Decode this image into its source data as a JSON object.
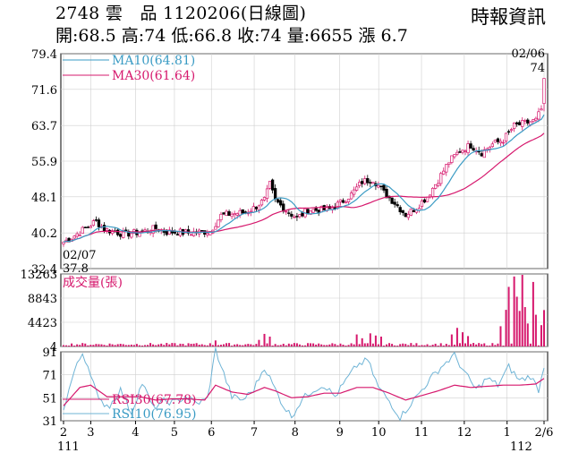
{
  "header": {
    "title": "2748 雲　品 1120206(日線圖)",
    "quote": "開:68.5 高:74 低:66.8 收:74 量:6655 漲 6.7",
    "brand": "時報資訊"
  },
  "colors": {
    "up": "#d6186d",
    "down": "#000000",
    "ma10": "#3a9bc4",
    "ma30": "#d6186d",
    "volume": "#d6186d",
    "rsi10": "#6fb4d6",
    "rsi30": "#d6186d",
    "grid": "#cfcfcf"
  },
  "chart_data": [
    {
      "type": "candlestick",
      "panel": "price",
      "ylim": [
        32.4,
        79.4
      ],
      "yticks": [
        "79.4",
        "71.6",
        "63.7",
        "55.9",
        "48.1",
        "40.2",
        "32.4"
      ],
      "legend": [
        {
          "name": "MA10",
          "value": "(64.81)",
          "color": "ma10"
        },
        {
          "name": "MA30",
          "value": "(61.64)",
          "color": "ma30"
        }
      ],
      "annotations": {
        "high_date": "02/06",
        "high_value": "74",
        "low_date": "02/07",
        "low_value": "37.8"
      },
      "close_keypoints": [
        {
          "i": 0,
          "v": 38.2
        },
        {
          "i": 3,
          "v": 39.2
        },
        {
          "i": 6,
          "v": 40.4
        },
        {
          "i": 9,
          "v": 41.6
        },
        {
          "i": 12,
          "v": 42.8
        },
        {
          "i": 15,
          "v": 41.0
        },
        {
          "i": 18,
          "v": 40.6
        },
        {
          "i": 22,
          "v": 40.0
        },
        {
          "i": 26,
          "v": 40.2
        },
        {
          "i": 30,
          "v": 40.6
        },
        {
          "i": 34,
          "v": 41.2
        },
        {
          "i": 38,
          "v": 40.4
        },
        {
          "i": 42,
          "v": 40.4
        },
        {
          "i": 46,
          "v": 40.2
        },
        {
          "i": 50,
          "v": 40.4
        },
        {
          "i": 54,
          "v": 40.6
        },
        {
          "i": 58,
          "v": 44.0
        },
        {
          "i": 62,
          "v": 44.4
        },
        {
          "i": 66,
          "v": 44.6
        },
        {
          "i": 70,
          "v": 45.6
        },
        {
          "i": 74,
          "v": 47.4
        },
        {
          "i": 76,
          "v": 50.8
        },
        {
          "i": 78,
          "v": 47.2
        },
        {
          "i": 82,
          "v": 45.2
        },
        {
          "i": 86,
          "v": 43.4
        },
        {
          "i": 90,
          "v": 45.2
        },
        {
          "i": 94,
          "v": 45.2
        },
        {
          "i": 98,
          "v": 45.4
        },
        {
          "i": 102,
          "v": 46.8
        },
        {
          "i": 106,
          "v": 48.6
        },
        {
          "i": 110,
          "v": 51.4
        },
        {
          "i": 114,
          "v": 52.0
        },
        {
          "i": 118,
          "v": 49.0
        },
        {
          "i": 122,
          "v": 46.8
        },
        {
          "i": 126,
          "v": 44.2
        },
        {
          "i": 130,
          "v": 45.8
        },
        {
          "i": 134,
          "v": 48.2
        },
        {
          "i": 138,
          "v": 51.8
        },
        {
          "i": 142,
          "v": 55.8
        },
        {
          "i": 146,
          "v": 58.2
        },
        {
          "i": 150,
          "v": 59.4
        },
        {
          "i": 154,
          "v": 57.8
        },
        {
          "i": 158,
          "v": 59.6
        },
        {
          "i": 162,
          "v": 60.6
        },
        {
          "i": 166,
          "v": 63.6
        },
        {
          "i": 170,
          "v": 64.2
        },
        {
          "i": 174,
          "v": 64.8
        },
        {
          "i": 176,
          "v": 67.3
        },
        {
          "i": 177,
          "v": 74.0
        }
      ],
      "last_bar": {
        "open": 68.5,
        "high": 74,
        "low": 66.8,
        "close": 74
      }
    },
    {
      "type": "bar",
      "panel": "volume",
      "title": "成交量(張)",
      "ylim": [
        0,
        13263
      ],
      "yticks": [
        "13263",
        "8843",
        "4423",
        "4"
      ],
      "high_volume_bars": [
        {
          "i": 56,
          "v": 1100
        },
        {
          "i": 72,
          "v": 1200
        },
        {
          "i": 74,
          "v": 2300
        },
        {
          "i": 76,
          "v": 1800
        },
        {
          "i": 108,
          "v": 2200
        },
        {
          "i": 110,
          "v": 1500
        },
        {
          "i": 113,
          "v": 2400
        },
        {
          "i": 115,
          "v": 2000
        },
        {
          "i": 117,
          "v": 1800
        },
        {
          "i": 143,
          "v": 2200
        },
        {
          "i": 145,
          "v": 3400
        },
        {
          "i": 147,
          "v": 2600
        },
        {
          "i": 149,
          "v": 1900
        },
        {
          "i": 161,
          "v": 3700
        },
        {
          "i": 163,
          "v": 6700
        },
        {
          "i": 164,
          "v": 10900
        },
        {
          "i": 166,
          "v": 12800
        },
        {
          "i": 167,
          "v": 9100
        },
        {
          "i": 168,
          "v": 6500
        },
        {
          "i": 169,
          "v": 13100
        },
        {
          "i": 170,
          "v": 7200
        },
        {
          "i": 171,
          "v": 4200
        },
        {
          "i": 173,
          "v": 11800
        },
        {
          "i": 174,
          "v": 5800
        },
        {
          "i": 176,
          "v": 3900
        },
        {
          "i": 177,
          "v": 6655
        }
      ]
    },
    {
      "type": "line",
      "panel": "rsi",
      "ylim": [
        31,
        91
      ],
      "yticks": [
        "91",
        "71",
        "51",
        "31"
      ],
      "legend": [
        {
          "name": "RSI30",
          "value": "(67.78)",
          "color": "rsi30"
        },
        {
          "name": "RSI10",
          "value": "(76.95)",
          "color": "rsi10"
        }
      ],
      "rsi10_keypoints": [
        {
          "i": 0,
          "v": 42
        },
        {
          "i": 4,
          "v": 74
        },
        {
          "i": 7,
          "v": 90
        },
        {
          "i": 10,
          "v": 73
        },
        {
          "i": 13,
          "v": 48
        },
        {
          "i": 17,
          "v": 44
        },
        {
          "i": 21,
          "v": 58
        },
        {
          "i": 25,
          "v": 38
        },
        {
          "i": 29,
          "v": 64
        },
        {
          "i": 33,
          "v": 42
        },
        {
          "i": 37,
          "v": 48
        },
        {
          "i": 41,
          "v": 47
        },
        {
          "i": 45,
          "v": 52
        },
        {
          "i": 49,
          "v": 46
        },
        {
          "i": 53,
          "v": 50
        },
        {
          "i": 56,
          "v": 93
        },
        {
          "i": 59,
          "v": 72
        },
        {
          "i": 62,
          "v": 52
        },
        {
          "i": 66,
          "v": 49
        },
        {
          "i": 70,
          "v": 58
        },
        {
          "i": 74,
          "v": 78
        },
        {
          "i": 77,
          "v": 63
        },
        {
          "i": 81,
          "v": 44
        },
        {
          "i": 84,
          "v": 35
        },
        {
          "i": 88,
          "v": 50
        },
        {
          "i": 92,
          "v": 58
        },
        {
          "i": 96,
          "v": 62
        },
        {
          "i": 100,
          "v": 52
        },
        {
          "i": 104,
          "v": 66
        },
        {
          "i": 108,
          "v": 79
        },
        {
          "i": 112,
          "v": 84
        },
        {
          "i": 116,
          "v": 60
        },
        {
          "i": 120,
          "v": 48
        },
        {
          "i": 124,
          "v": 34
        },
        {
          "i": 128,
          "v": 46
        },
        {
          "i": 132,
          "v": 58
        },
        {
          "i": 136,
          "v": 70
        },
        {
          "i": 140,
          "v": 80
        },
        {
          "i": 144,
          "v": 88
        },
        {
          "i": 148,
          "v": 72
        },
        {
          "i": 152,
          "v": 58
        },
        {
          "i": 156,
          "v": 68
        },
        {
          "i": 160,
          "v": 62
        },
        {
          "i": 164,
          "v": 78
        },
        {
          "i": 168,
          "v": 66
        },
        {
          "i": 172,
          "v": 70
        },
        {
          "i": 175,
          "v": 58
        },
        {
          "i": 177,
          "v": 76.95
        }
      ],
      "rsi30_keypoints": [
        {
          "i": 0,
          "v": 44
        },
        {
          "i": 6,
          "v": 60
        },
        {
          "i": 10,
          "v": 62
        },
        {
          "i": 16,
          "v": 52
        },
        {
          "i": 22,
          "v": 52
        },
        {
          "i": 28,
          "v": 52
        },
        {
          "i": 34,
          "v": 49
        },
        {
          "i": 40,
          "v": 50
        },
        {
          "i": 46,
          "v": 50
        },
        {
          "i": 52,
          "v": 49
        },
        {
          "i": 56,
          "v": 62
        },
        {
          "i": 62,
          "v": 56
        },
        {
          "i": 68,
          "v": 54
        },
        {
          "i": 74,
          "v": 60
        },
        {
          "i": 78,
          "v": 57
        },
        {
          "i": 84,
          "v": 51
        },
        {
          "i": 90,
          "v": 52
        },
        {
          "i": 96,
          "v": 55
        },
        {
          "i": 102,
          "v": 55
        },
        {
          "i": 108,
          "v": 60
        },
        {
          "i": 114,
          "v": 60
        },
        {
          "i": 120,
          "v": 55
        },
        {
          "i": 126,
          "v": 49
        },
        {
          "i": 132,
          "v": 53
        },
        {
          "i": 138,
          "v": 57
        },
        {
          "i": 144,
          "v": 62
        },
        {
          "i": 150,
          "v": 60
        },
        {
          "i": 156,
          "v": 61
        },
        {
          "i": 162,
          "v": 62
        },
        {
          "i": 168,
          "v": 62
        },
        {
          "i": 174,
          "v": 63
        },
        {
          "i": 177,
          "v": 67.78
        }
      ]
    }
  ],
  "x_axis": {
    "bars": 178,
    "ticks": [
      {
        "i": 0,
        "label": "2"
      },
      {
        "i": 14,
        "label": "3"
      },
      {
        "i": 37,
        "label": "4"
      },
      {
        "i": 57,
        "label": "5"
      },
      {
        "i": 76,
        "label": "6"
      },
      {
        "i": 98,
        "label": "7"
      },
      {
        "i": 119,
        "label": "8"
      },
      {
        "i": 142,
        "label": "9"
      },
      {
        "i": 162,
        "label": "10"
      },
      {
        "i": 184,
        "label": "11"
      },
      {
        "i": 206,
        "label": "12"
      },
      {
        "i": 228,
        "label": "1"
      },
      {
        "i": 247,
        "label": "2/6"
      }
    ],
    "year_start": "111",
    "year_end": "112"
  }
}
